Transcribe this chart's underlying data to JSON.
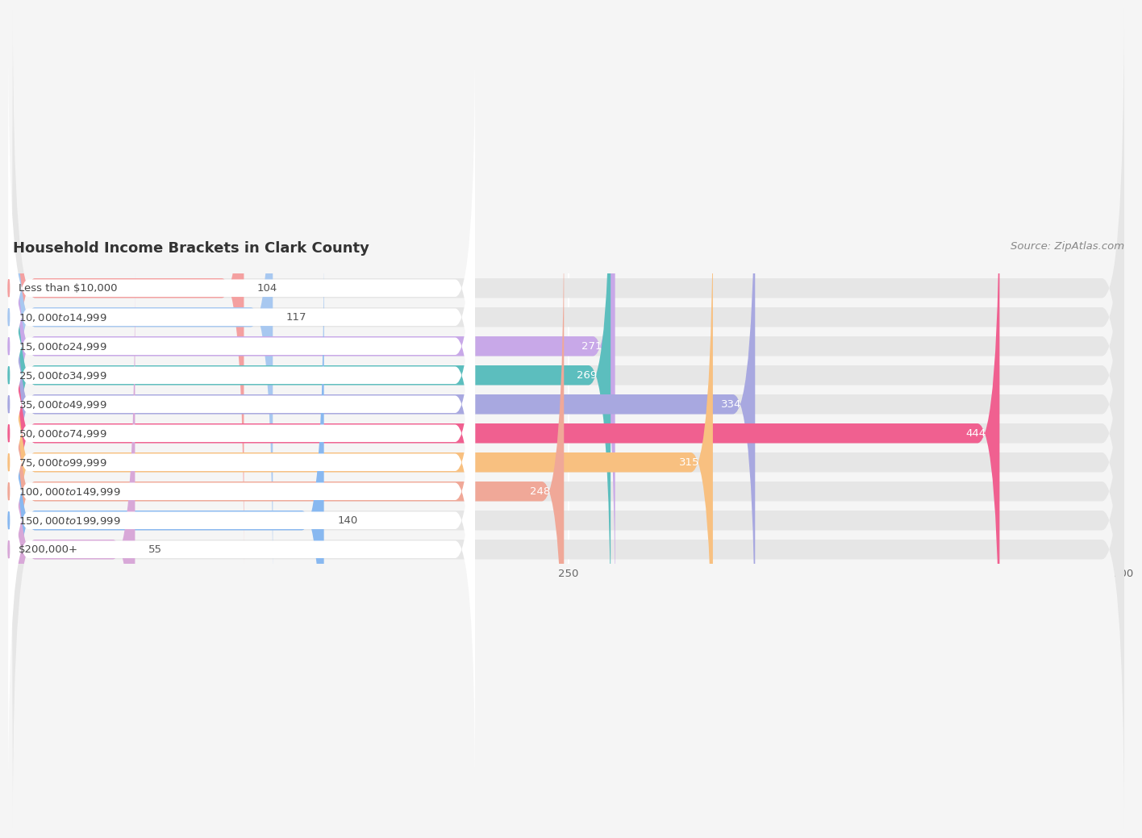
{
  "title": "Household Income Brackets in Clark County",
  "source": "Source: ZipAtlas.com",
  "categories": [
    "Less than $10,000",
    "$10,000 to $14,999",
    "$15,000 to $24,999",
    "$25,000 to $34,999",
    "$35,000 to $49,999",
    "$50,000 to $74,999",
    "$75,000 to $99,999",
    "$100,000 to $149,999",
    "$150,000 to $199,999",
    "$200,000+"
  ],
  "values": [
    104,
    117,
    271,
    269,
    334,
    444,
    315,
    248,
    140,
    55
  ],
  "bar_colors": [
    "#F4A0A0",
    "#A8C8F0",
    "#C8A8E8",
    "#5CBEBE",
    "#A8A8E0",
    "#F06090",
    "#F8C080",
    "#F0A898",
    "#88B8F0",
    "#D8A8D8"
  ],
  "bg_color": "#f5f5f5",
  "bar_bg_color": "#e6e6e6",
  "label_pill_color": "#ffffff",
  "xlim": [
    0,
    500
  ],
  "xticks": [
    0,
    250,
    500
  ],
  "bar_height": 0.68,
  "title_fontsize": 13,
  "label_fontsize": 9.5,
  "value_fontsize": 9.5,
  "source_fontsize": 9.5,
  "value_threshold_inside": 200
}
